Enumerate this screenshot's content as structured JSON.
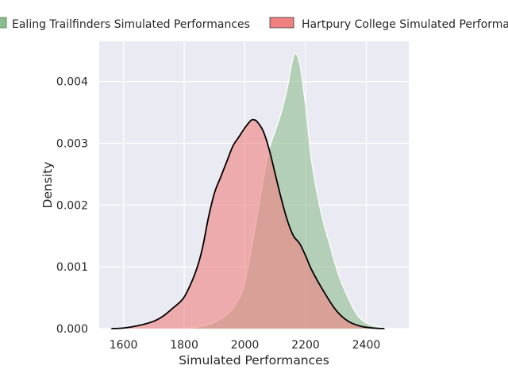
{
  "chart_data": {
    "type": "area",
    "xlabel": "Simulated Performances",
    "ylabel": "Density",
    "xlim": [
      1520,
      2540
    ],
    "ylim": [
      0,
      0.00465
    ],
    "x_ticks": [
      1600,
      1800,
      2000,
      2200,
      2400
    ],
    "x_tick_labels": [
      "1600",
      "1800",
      "2000",
      "2200",
      "2400"
    ],
    "y_ticks": [
      0,
      0.001,
      0.002,
      0.003,
      0.004
    ],
    "y_tick_labels": [
      "0.000",
      "0.001",
      "0.002",
      "0.003",
      "0.004"
    ],
    "grid": true,
    "legend_position": "top, outside plot",
    "series": [
      {
        "name": "Ealing Trailfinders Simulated Performances",
        "color": "#8fbc8f",
        "edge": "#ffffff",
        "x": [
          1800,
          1850,
          1900,
          1950,
          1980,
          2000,
          2020,
          2040,
          2060,
          2080,
          2100,
          2120,
          2140,
          2155,
          2165,
          2180,
          2200,
          2220,
          2250,
          2280,
          2310,
          2340,
          2370,
          2400,
          2430,
          2460,
          2500
        ],
        "values": [
          0,
          3e-05,
          0.0001,
          0.00027,
          0.00048,
          0.00075,
          0.00125,
          0.0018,
          0.0024,
          0.0029,
          0.0032,
          0.0035,
          0.0039,
          0.0043,
          0.00445,
          0.0043,
          0.0036,
          0.0027,
          0.0019,
          0.00135,
          0.00085,
          0.0005,
          0.00022,
          9e-05,
          4e-05,
          1e-05,
          0
        ]
      },
      {
        "name": "Hartpury College Simulated Performances",
        "color": "#f08080",
        "edge": "#000000",
        "x": [
          1560,
          1600,
          1650,
          1700,
          1730,
          1760,
          1790,
          1810,
          1840,
          1860,
          1880,
          1900,
          1920,
          1940,
          1960,
          1980,
          2000,
          2020,
          2030,
          2040,
          2060,
          2080,
          2100,
          2120,
          2140,
          2160,
          2180,
          2200,
          2220,
          2260,
          2300,
          2340,
          2380,
          2420,
          2460
        ],
        "values": [
          0,
          1e-05,
          5e-05,
          0.00012,
          0.0002,
          0.00032,
          0.00045,
          0.0006,
          0.00095,
          0.0013,
          0.0018,
          0.0022,
          0.00245,
          0.0027,
          0.00295,
          0.0031,
          0.00325,
          0.00337,
          0.00338,
          0.00335,
          0.0032,
          0.0029,
          0.0025,
          0.0021,
          0.00175,
          0.0015,
          0.00138,
          0.00118,
          0.00095,
          0.0006,
          0.0003,
          0.00012,
          4e-05,
          1e-05,
          0
        ]
      }
    ]
  }
}
